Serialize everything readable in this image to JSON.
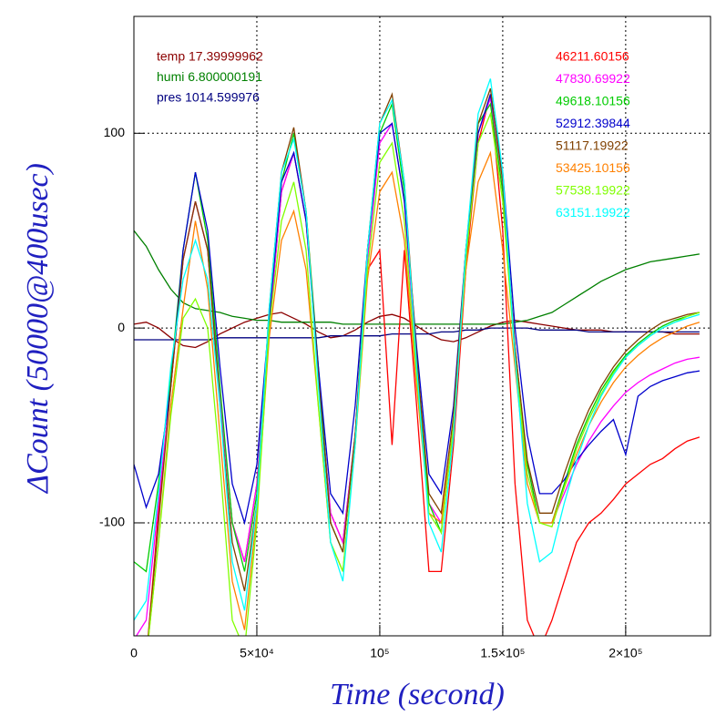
{
  "chart_data": {
    "type": "line",
    "xlabel": "Time (second)",
    "ylabel": "ΔCount (50000@400usec)",
    "xlim": [
      0,
      234500
    ],
    "ylim": [
      -158,
      160
    ],
    "xticks": [
      {
        "value": 0,
        "label": "0"
      },
      {
        "value": 50000,
        "label": "5×10⁴"
      },
      {
        "value": 100000,
        "label": "10⁵"
      },
      {
        "value": 150000,
        "label": "1.5×10⁵"
      },
      {
        "value": 200000,
        "label": "2×10⁵"
      }
    ],
    "yticks": [
      -100,
      0,
      100
    ],
    "grid": true,
    "x": [
      0,
      5000,
      10000,
      15000,
      20000,
      25000,
      30000,
      35000,
      40000,
      45000,
      50000,
      55000,
      60000,
      65000,
      70000,
      75000,
      80000,
      85000,
      90000,
      95000,
      100000,
      105000,
      110000,
      115000,
      120000,
      125000,
      130000,
      135000,
      140000,
      145000,
      150000,
      155000,
      160000,
      165000,
      170000,
      175000,
      180000,
      185000,
      190000,
      195000,
      200000,
      205000,
      210000,
      215000,
      220000,
      225000,
      230000
    ],
    "series": [
      {
        "name": "temp 17.39999962",
        "color": "#8b0000",
        "values": [
          2,
          3,
          0,
          -5,
          -9,
          -10,
          -7,
          -3,
          0,
          3,
          5,
          7,
          8,
          5,
          2,
          -2,
          -5,
          -4,
          -1,
          3,
          6,
          7,
          5,
          1,
          -3,
          -6,
          -7,
          -5,
          -2,
          1,
          3,
          4,
          3,
          2,
          1,
          0,
          -1,
          -1,
          -1,
          -2,
          -2,
          -2,
          -2,
          -2,
          -3,
          -3,
          -3
        ]
      },
      {
        "name": "humi 6.800000191",
        "color": "#008000",
        "values": [
          50,
          42,
          30,
          20,
          13,
          10,
          9,
          8,
          6,
          5,
          4,
          4,
          3,
          3,
          3,
          3,
          3,
          2,
          2,
          2,
          2,
          2,
          2,
          2,
          2,
          2,
          2,
          2,
          2,
          2,
          2,
          3,
          4,
          6,
          8,
          12,
          16,
          20,
          24,
          27,
          30,
          32,
          34,
          35,
          36,
          37,
          38
        ]
      },
      {
        "name": "pres 1014.599976",
        "color": "#000080",
        "values": [
          -6,
          -6,
          -6,
          -6,
          -6,
          -6,
          -6,
          -5,
          -5,
          -5,
          -5,
          -5,
          -5,
          -5,
          -5,
          -5,
          -4,
          -4,
          -4,
          -4,
          -4,
          -3,
          -3,
          -3,
          -3,
          -2,
          -2,
          -1,
          -1,
          0,
          0,
          0,
          0,
          -1,
          -1,
          -1,
          -1,
          -2,
          -2,
          -2,
          -2,
          -2,
          -2,
          -2,
          -2,
          -2,
          -2
        ]
      },
      {
        "name": "46211.60156",
        "color": "#ff0000",
        "values": [
          -200,
          -170,
          -95,
          -30,
          35,
          65,
          40,
          -35,
          -100,
          -120,
          -80,
          0,
          70,
          90,
          55,
          -25,
          -95,
          -110,
          -55,
          30,
          40,
          -60,
          40,
          -40,
          -125,
          -125,
          -60,
          30,
          95,
          120,
          50,
          -80,
          -150,
          -165,
          -150,
          -130,
          -110,
          -100,
          -95,
          -88,
          -80,
          -75,
          -70,
          -67,
          -62,
          -58,
          -56
        ]
      },
      {
        "name": "47830.69922",
        "color": "#ff00ff",
        "values": [
          -160,
          -150,
          -90,
          -30,
          35,
          65,
          40,
          -35,
          -100,
          -120,
          -80,
          0,
          70,
          90,
          55,
          -25,
          -95,
          -110,
          -55,
          35,
          95,
          105,
          65,
          -20,
          -90,
          -100,
          -50,
          35,
          100,
          118,
          70,
          -10,
          -70,
          -100,
          -100,
          -85,
          -70,
          -58,
          -48,
          -40,
          -33,
          -28,
          -24,
          -21,
          -18,
          -16,
          -15
        ]
      },
      {
        "name": "49618.10156",
        "color": "#00cc00",
        "values": [
          -120,
          -125,
          -80,
          -25,
          40,
          80,
          45,
          -30,
          -100,
          -125,
          -85,
          5,
          75,
          100,
          60,
          -20,
          -100,
          -115,
          -55,
          40,
          100,
          115,
          70,
          -15,
          -90,
          -105,
          -50,
          40,
          105,
          115,
          70,
          -10,
          -70,
          -100,
          -100,
          -80,
          -60,
          -45,
          -32,
          -22,
          -14,
          -8,
          -3,
          1,
          4,
          6,
          8
        ]
      },
      {
        "name": "52912.39844",
        "color": "#0000cc",
        "values": [
          -70,
          -92,
          -75,
          -30,
          40,
          80,
          50,
          -20,
          -80,
          -100,
          -70,
          5,
          75,
          90,
          55,
          -20,
          -85,
          -95,
          -40,
          40,
          100,
          105,
          65,
          -10,
          -75,
          -85,
          -40,
          40,
          100,
          120,
          80,
          0,
          -55,
          -85,
          -85,
          -78,
          -68,
          -60,
          -53,
          -47,
          -65,
          -35,
          -30,
          -27,
          -25,
          -23,
          -22
        ]
      },
      {
        "name": "51117.19922",
        "color": "#804000",
        "values": [
          -190,
          -170,
          -100,
          -30,
          35,
          65,
          40,
          -40,
          -110,
          -135,
          -90,
          10,
          80,
          103,
          60,
          -25,
          -100,
          -115,
          -55,
          40,
          105,
          120,
          75,
          -15,
          -85,
          -95,
          -45,
          40,
          105,
          123,
          75,
          -10,
          -68,
          -95,
          -95,
          -75,
          -57,
          -42,
          -30,
          -20,
          -12,
          -6,
          -1,
          3,
          5,
          7,
          8
        ]
      },
      {
        "name": "53425.10156",
        "color": "#ff8000",
        "values": [
          -190,
          -170,
          -110,
          -40,
          10,
          55,
          20,
          -55,
          -130,
          -155,
          -95,
          -5,
          45,
          60,
          30,
          -40,
          -110,
          -125,
          -60,
          25,
          70,
          80,
          45,
          -30,
          -95,
          -100,
          -50,
          30,
          75,
          90,
          40,
          -20,
          -80,
          -100,
          -100,
          -82,
          -65,
          -50,
          -38,
          -28,
          -20,
          -14,
          -9,
          -5,
          -2,
          1,
          3
        ]
      },
      {
        "name": "57538.19922",
        "color": "#80ff00",
        "values": [
          -190,
          -170,
          -110,
          -45,
          5,
          15,
          0,
          -70,
          -150,
          -165,
          -100,
          0,
          55,
          75,
          40,
          -40,
          -110,
          -125,
          -60,
          30,
          85,
          95,
          55,
          -25,
          -95,
          -105,
          -50,
          35,
          95,
          110,
          65,
          -15,
          -75,
          -100,
          -102,
          -82,
          -62,
          -47,
          -34,
          -23,
          -15,
          -9,
          -4,
          0,
          3,
          6,
          8
        ]
      },
      {
        "name": "63151.19922",
        "color": "#00ffff",
        "values": [
          -150,
          -140,
          -85,
          -20,
          25,
          45,
          25,
          -40,
          -120,
          -145,
          -90,
          10,
          80,
          97,
          60,
          -30,
          -110,
          -130,
          -60,
          40,
          105,
          117,
          75,
          -20,
          -100,
          -115,
          -55,
          40,
          110,
          128,
          80,
          -15,
          -90,
          -120,
          -115,
          -90,
          -68,
          -50,
          -35,
          -24,
          -15,
          -9,
          -4,
          0,
          3,
          5,
          7
        ]
      }
    ]
  }
}
